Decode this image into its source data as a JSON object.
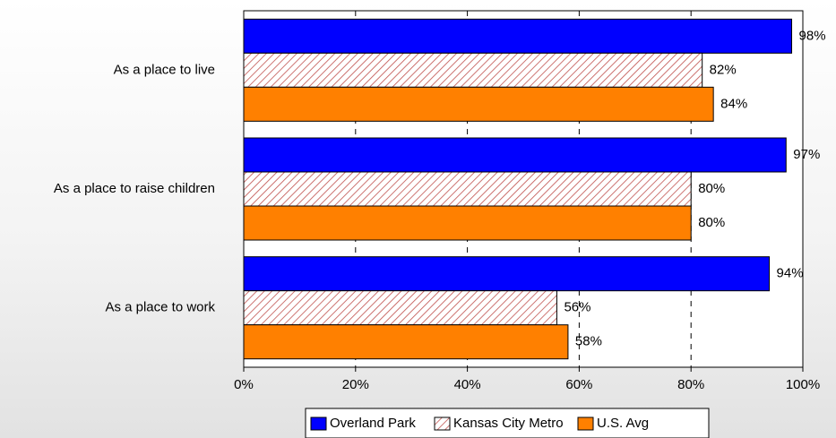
{
  "chart_data": {
    "type": "bar",
    "orientation": "horizontal",
    "categories": [
      "As a place to live",
      "As a place to raise children",
      "As a place to work"
    ],
    "series": [
      {
        "name": "Overland Park",
        "values": [
          98,
          97,
          94
        ],
        "labels": [
          "98%",
          "97%",
          "94%"
        ],
        "color": "#0000ff",
        "pattern": "solid"
      },
      {
        "name": "Kansas City Metro",
        "values": [
          82,
          80,
          56
        ],
        "labels": [
          "82%",
          "80%",
          "56%"
        ],
        "color": "#c0504d",
        "pattern": "diagonal-hatch"
      },
      {
        "name": "U.S. Avg",
        "values": [
          84,
          80,
          58
        ],
        "labels": [
          "84%",
          "80%",
          "58%"
        ],
        "color": "#ff8000",
        "pattern": "solid"
      }
    ],
    "xlim": [
      0,
      100
    ],
    "xticks": [
      0,
      20,
      40,
      60,
      80,
      100
    ],
    "xtick_labels": [
      "0%",
      "20%",
      "40%",
      "60%",
      "80%",
      "100%"
    ],
    "grid": "vertical-dashed",
    "legend_position": "bottom",
    "title": "",
    "xlabel": "",
    "ylabel": ""
  }
}
